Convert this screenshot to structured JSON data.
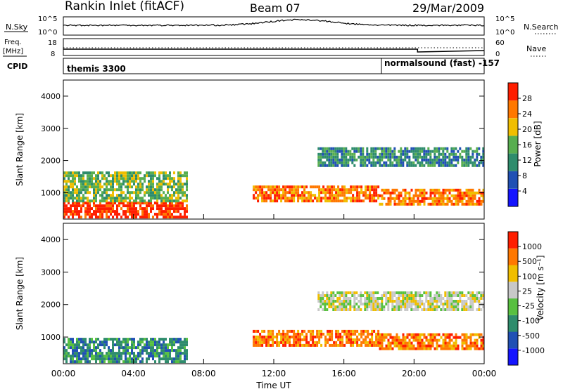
{
  "header": {
    "station": "Rankin Inlet (fitACF)",
    "beam": "Beam 07",
    "date": "29/Mar/2009"
  },
  "status_panels": {
    "nsky_label": "N.Sky",
    "nsky_ticks": [
      "10^5",
      "10^0"
    ],
    "nsearch_label": "N.Search",
    "nsearch_ticks": [
      "10^5",
      "10^0"
    ],
    "freq_label_1": "Freq.",
    "freq_label_2": "[MHz]",
    "freq_ticks": [
      "18",
      "8"
    ],
    "nave_label": "Nave",
    "nave_ticks": [
      "60",
      "0"
    ],
    "cpid_label": "CPID",
    "cpid_left": "themis 3300",
    "cpid_right": "normalsound (fast) -157"
  },
  "chart_data": [
    {
      "type": "heatmap",
      "name": "power-panel",
      "ylabel": "Slant Range [km]",
      "yticks": [
        "4000",
        "3000",
        "2000",
        "1000"
      ],
      "colorbar_label": "Power [dB]",
      "colorbar_ticks": [
        "28",
        "24",
        "20",
        "16",
        "12",
        "8",
        "4"
      ],
      "colors": [
        "#1414ff",
        "#2050b4",
        "#2e8c6c",
        "#58ae50",
        "#f0be00",
        "#ff7800",
        "#ff1e00"
      ],
      "echo_bands": [
        {
          "t0": 0.0,
          "t1": 7.0,
          "r0": 200,
          "r1": 700,
          "level": 6
        },
        {
          "t0": 0.0,
          "t1": 7.0,
          "r0": 700,
          "r1": 1600,
          "level": 3
        },
        {
          "t0": 10.8,
          "t1": 18.0,
          "r0": 700,
          "r1": 1200,
          "level": 5
        },
        {
          "t0": 14.5,
          "t1": 24.0,
          "r0": 1800,
          "r1": 2400,
          "level": 2
        },
        {
          "t0": 18.0,
          "t1": 24.0,
          "r0": 600,
          "r1": 1100,
          "level": 5
        }
      ]
    },
    {
      "type": "heatmap",
      "name": "velocity-panel",
      "ylabel": "Slant Range [km]",
      "yticks": [
        "4000",
        "3000",
        "2000",
        "1000"
      ],
      "colorbar_label": "Velocity [m s⁻¹]",
      "colorbar_ticks": [
        "1000",
        "500",
        "100",
        "25",
        "-25",
        "-100",
        "-500",
        "-1000"
      ],
      "colors": [
        "#1414ff",
        "#2050b4",
        "#2e8c6c",
        "#58c040",
        "#c8c8c8",
        "#f0be00",
        "#ff7800",
        "#ff1e00"
      ],
      "echo_bands": [
        {
          "t0": 0.0,
          "t1": 7.0,
          "r0": 200,
          "r1": 900,
          "level": 2
        },
        {
          "t0": 10.8,
          "t1": 18.0,
          "r0": 700,
          "r1": 1200,
          "level": 6
        },
        {
          "t0": 14.5,
          "t1": 24.0,
          "r0": 1800,
          "r1": 2400,
          "level": 4
        },
        {
          "t0": 18.0,
          "t1": 24.0,
          "r0": 600,
          "r1": 1100,
          "level": 6
        }
      ]
    }
  ],
  "xaxis": {
    "label": "Time UT",
    "ticks": [
      "00:00",
      "04:00",
      "08:00",
      "12:00",
      "16:00",
      "20:00",
      "00:00"
    ],
    "range": [
      0,
      24
    ]
  },
  "yrange": [
    180,
    4500
  ]
}
